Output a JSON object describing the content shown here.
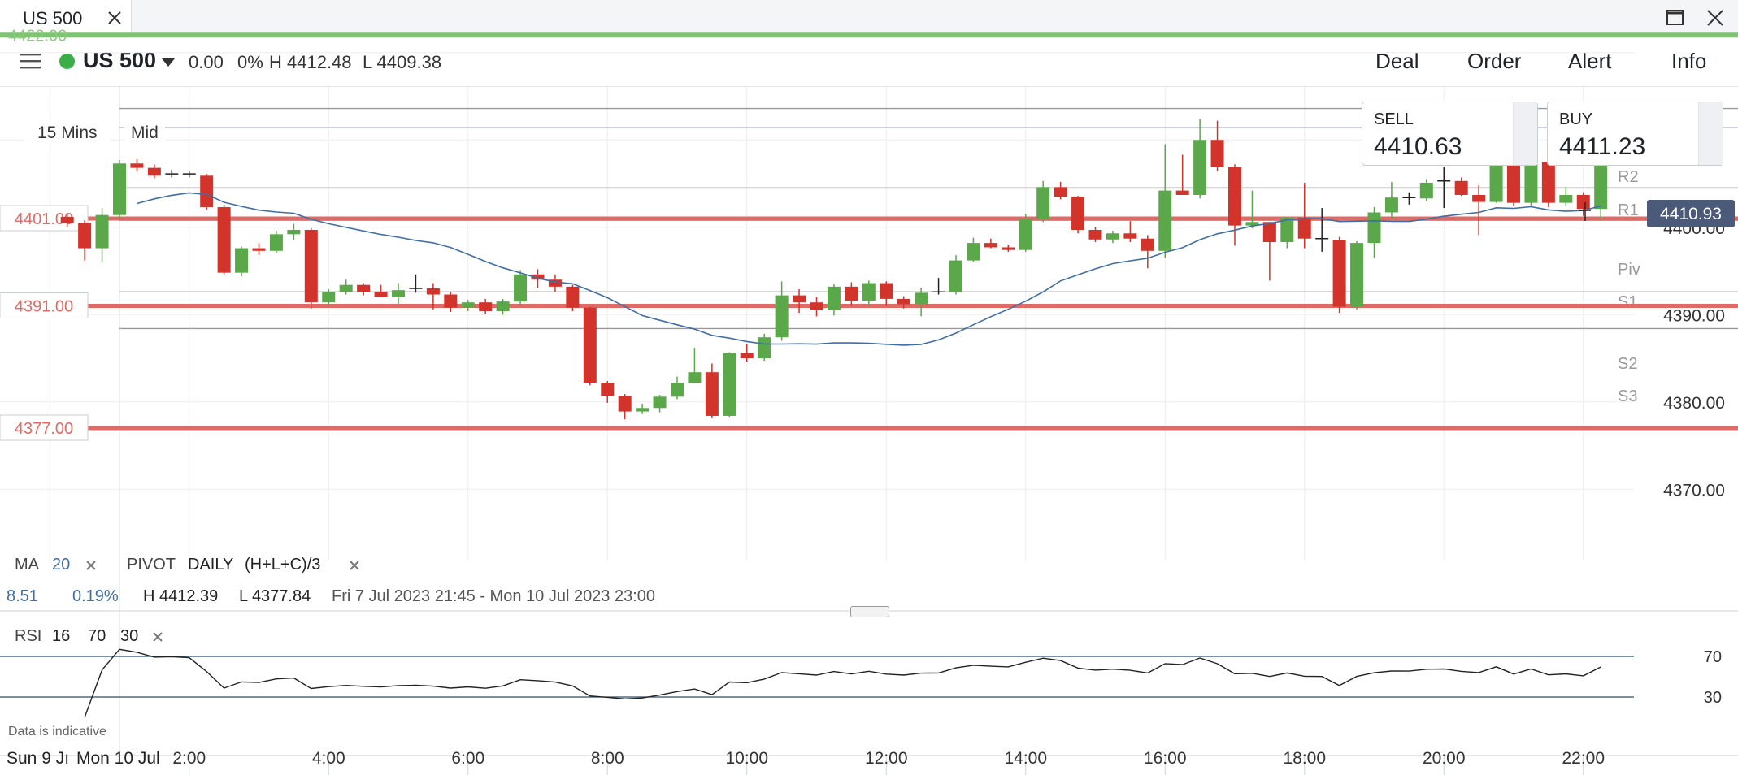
{
  "tab": {
    "title": "US 500"
  },
  "header": {
    "instrument": "US 500",
    "change": "0.00",
    "change_pct": "0%",
    "high": "H 4412.48",
    "low": "L 4409.38",
    "nav": [
      "Deal",
      "Order",
      "Alert",
      "Info"
    ]
  },
  "chart_controls": {
    "interval": "15 Mins",
    "price_type": "Mid"
  },
  "sell": {
    "label": "SELL",
    "price": "4410.63"
  },
  "buy": {
    "label": "BUY",
    "price": "4411.23"
  },
  "current_price": "4410.93",
  "levels": {
    "top_green": "4422.00",
    "alert1": "4401.00",
    "alert2": "4391.00",
    "alert3": "4377.00"
  },
  "pivot_labels": [
    "R2",
    "R1",
    "Piv",
    "S1",
    "S2",
    "S3"
  ],
  "y_ticks": [
    "4400.00",
    "4390.00",
    "4380.00",
    "4370.00"
  ],
  "x_ticks": [
    "2:00",
    "4:00",
    "6:00",
    "8:00",
    "10:00",
    "12:00",
    "14:00",
    "16:00",
    "18:00",
    "20:00",
    "22:00"
  ],
  "x_day_labels": [
    "Sun 9 Jı",
    "Mon 10 Jul"
  ],
  "indicators": {
    "ma_label": "MA",
    "ma_period": "20",
    "pivot_label": "PIVOT",
    "pivot_period": "DAILY",
    "pivot_formula": "(H+L+C)/3",
    "change_value": "8.51",
    "change_pct": "0.19%",
    "range_high": "H 4412.39",
    "range_low": "L 4377.84",
    "range_dates": "Fri 7 Jul 2023 21:45 - Mon 10 Jul 2023 23:00",
    "rsi_label": "RSI",
    "rsi_period": "16",
    "rsi_upper": "70",
    "rsi_lower": "30"
  },
  "rsi_ticks": [
    "70",
    "30"
  ],
  "disclaimer": "Data is indicative",
  "colors": {
    "up": "#5aa84a",
    "down": "#d2332b",
    "ma": "#3f6ea5",
    "alert_line": "#e06a66",
    "green_line": "#7cc46f",
    "pivot_line": "#999999",
    "price_tag": "#4a5a78"
  },
  "chart_data": {
    "type": "candlestick",
    "interval": "15 Mins",
    "ylim": [
      4365,
      4425
    ],
    "pivots": {
      "R2": 4413.6,
      "R1": 4411.4,
      "Piv": 4404.5,
      "S1": 4400.8,
      "S2": 4392.6,
      "S3": 4388.4
    },
    "candles": [
      {
        "t": "00:15",
        "o": 4401.2,
        "h": 4401.6,
        "l": 4400.0,
        "c": 4400.5
      },
      {
        "t": "00:30",
        "o": 4400.5,
        "h": 4400.8,
        "l": 4396.2,
        "c": 4397.6
      },
      {
        "t": "00:45",
        "o": 4397.6,
        "h": 4402.2,
        "l": 4396.0,
        "c": 4401.4
      },
      {
        "t": "01:00",
        "o": 4401.4,
        "h": 4407.7,
        "l": 4401.0,
        "c": 4407.3
      },
      {
        "t": "01:15",
        "o": 4407.3,
        "h": 4407.8,
        "l": 4406.4,
        "c": 4406.8
      },
      {
        "t": "01:30",
        "o": 4406.8,
        "h": 4407.2,
        "l": 4405.6,
        "c": 4405.9
      },
      {
        "t": "01:45",
        "o": 4405.9,
        "h": 4406.6,
        "l": 4405.7,
        "c": 4406.1
      },
      {
        "t": "02:00",
        "o": 4406.1,
        "h": 4406.4,
        "l": 4405.7,
        "c": 4405.9
      },
      {
        "t": "02:15",
        "o": 4405.9,
        "h": 4406.1,
        "l": 4402.0,
        "c": 4402.3
      },
      {
        "t": "02:30",
        "o": 4402.3,
        "h": 4402.6,
        "l": 4394.6,
        "c": 4394.8
      },
      {
        "t": "02:45",
        "o": 4394.8,
        "h": 4397.8,
        "l": 4394.4,
        "c": 4397.6
      },
      {
        "t": "03:00",
        "o": 4397.6,
        "h": 4398.2,
        "l": 4396.8,
        "c": 4397.3
      },
      {
        "t": "03:15",
        "o": 4397.3,
        "h": 4399.6,
        "l": 4397.0,
        "c": 4399.2
      },
      {
        "t": "03:30",
        "o": 4399.2,
        "h": 4400.4,
        "l": 4398.5,
        "c": 4399.7
      },
      {
        "t": "03:45",
        "o": 4399.7,
        "h": 4399.9,
        "l": 4390.7,
        "c": 4391.4
      },
      {
        "t": "04:00",
        "o": 4391.4,
        "h": 4392.9,
        "l": 4391.1,
        "c": 4392.6
      },
      {
        "t": "04:15",
        "o": 4392.6,
        "h": 4394.0,
        "l": 4392.3,
        "c": 4393.4
      },
      {
        "t": "04:30",
        "o": 4393.4,
        "h": 4393.6,
        "l": 4392.2,
        "c": 4392.6
      },
      {
        "t": "04:45",
        "o": 4392.6,
        "h": 4393.4,
        "l": 4392.2,
        "c": 4392.0
      },
      {
        "t": "05:00",
        "o": 4392.0,
        "h": 4393.6,
        "l": 4391.2,
        "c": 4392.8
      },
      {
        "t": "05:15",
        "o": 4392.8,
        "h": 4394.6,
        "l": 4392.5,
        "c": 4393.0
      },
      {
        "t": "05:30",
        "o": 4393.0,
        "h": 4393.6,
        "l": 4390.6,
        "c": 4392.3
      },
      {
        "t": "05:45",
        "o": 4392.3,
        "h": 4392.6,
        "l": 4390.3,
        "c": 4390.8
      },
      {
        "t": "06:00",
        "o": 4390.8,
        "h": 4391.7,
        "l": 4390.4,
        "c": 4391.4
      },
      {
        "t": "06:15",
        "o": 4391.4,
        "h": 4391.8,
        "l": 4390.1,
        "c": 4390.4
      },
      {
        "t": "06:30",
        "o": 4390.4,
        "h": 4391.8,
        "l": 4390.0,
        "c": 4391.5
      },
      {
        "t": "06:45",
        "o": 4391.5,
        "h": 4395.1,
        "l": 4391.2,
        "c": 4394.6
      },
      {
        "t": "07:00",
        "o": 4394.6,
        "h": 4395.2,
        "l": 4393.0,
        "c": 4394.0
      },
      {
        "t": "07:15",
        "o": 4394.0,
        "h": 4394.6,
        "l": 4392.6,
        "c": 4393.2
      },
      {
        "t": "07:30",
        "o": 4393.2,
        "h": 4393.4,
        "l": 4390.4,
        "c": 4390.8
      },
      {
        "t": "07:45",
        "o": 4390.8,
        "h": 4390.9,
        "l": 4381.9,
        "c": 4382.2
      },
      {
        "t": "08:00",
        "o": 4382.2,
        "h": 4382.4,
        "l": 4379.9,
        "c": 4380.7
      },
      {
        "t": "08:15",
        "o": 4380.7,
        "h": 4380.9,
        "l": 4378.0,
        "c": 4378.9
      },
      {
        "t": "08:30",
        "o": 4378.9,
        "h": 4379.8,
        "l": 4378.6,
        "c": 4379.3
      },
      {
        "t": "08:45",
        "o": 4379.3,
        "h": 4380.8,
        "l": 4378.8,
        "c": 4380.6
      },
      {
        "t": "09:00",
        "o": 4380.6,
        "h": 4382.9,
        "l": 4380.3,
        "c": 4382.2
      },
      {
        "t": "09:15",
        "o": 4382.2,
        "h": 4386.2,
        "l": 4382.1,
        "c": 4383.4
      },
      {
        "t": "09:30",
        "o": 4383.4,
        "h": 4384.4,
        "l": 4378.2,
        "c": 4378.4
      },
      {
        "t": "09:45",
        "o": 4378.4,
        "h": 4385.7,
        "l": 4378.3,
        "c": 4385.6
      },
      {
        "t": "10:00",
        "o": 4385.6,
        "h": 4386.6,
        "l": 4384.6,
        "c": 4385.0
      },
      {
        "t": "10:15",
        "o": 4385.0,
        "h": 4387.8,
        "l": 4384.7,
        "c": 4387.4
      },
      {
        "t": "10:30",
        "o": 4387.4,
        "h": 4393.8,
        "l": 4387.0,
        "c": 4392.2
      },
      {
        "t": "10:45",
        "o": 4392.2,
        "h": 4392.9,
        "l": 4390.2,
        "c": 4391.4
      },
      {
        "t": "11:00",
        "o": 4391.4,
        "h": 4392.0,
        "l": 4389.8,
        "c": 4390.5
      },
      {
        "t": "11:15",
        "o": 4390.5,
        "h": 4393.5,
        "l": 4389.9,
        "c": 4393.2
      },
      {
        "t": "11:30",
        "o": 4393.2,
        "h": 4393.7,
        "l": 4391.0,
        "c": 4391.6
      },
      {
        "t": "11:45",
        "o": 4391.6,
        "h": 4393.9,
        "l": 4391.0,
        "c": 4393.6
      },
      {
        "t": "12:00",
        "o": 4393.6,
        "h": 4393.8,
        "l": 4391.0,
        "c": 4391.8
      },
      {
        "t": "12:15",
        "o": 4391.8,
        "h": 4392.1,
        "l": 4390.7,
        "c": 4391.2
      },
      {
        "t": "12:30",
        "o": 4391.2,
        "h": 4393.1,
        "l": 4389.8,
        "c": 4392.5
      },
      {
        "t": "12:45",
        "o": 4392.5,
        "h": 4394.2,
        "l": 4392.3,
        "c": 4392.6
      },
      {
        "t": "13:00",
        "o": 4392.6,
        "h": 4396.8,
        "l": 4392.3,
        "c": 4396.2
      },
      {
        "t": "13:15",
        "o": 4396.2,
        "h": 4398.8,
        "l": 4396.0,
        "c": 4398.2
      },
      {
        "t": "13:30",
        "o": 4398.2,
        "h": 4398.7,
        "l": 4397.6,
        "c": 4397.7
      },
      {
        "t": "13:45",
        "o": 4397.7,
        "h": 4398.0,
        "l": 4397.2,
        "c": 4397.4
      },
      {
        "t": "14:00",
        "o": 4397.4,
        "h": 4401.5,
        "l": 4397.2,
        "c": 4400.9
      },
      {
        "t": "14:15",
        "o": 4400.9,
        "h": 4405.3,
        "l": 4400.6,
        "c": 4404.6
      },
      {
        "t": "14:30",
        "o": 4404.6,
        "h": 4405.2,
        "l": 4403.2,
        "c": 4403.5
      },
      {
        "t": "14:45",
        "o": 4403.5,
        "h": 4403.6,
        "l": 4399.3,
        "c": 4399.7
      },
      {
        "t": "15:00",
        "o": 4399.7,
        "h": 4400.0,
        "l": 4398.3,
        "c": 4398.6
      },
      {
        "t": "15:15",
        "o": 4398.6,
        "h": 4399.6,
        "l": 4398.2,
        "c": 4399.3
      },
      {
        "t": "15:30",
        "o": 4399.3,
        "h": 4400.7,
        "l": 4398.3,
        "c": 4398.7
      },
      {
        "t": "15:45",
        "o": 4398.7,
        "h": 4399.1,
        "l": 4395.3,
        "c": 4397.3
      },
      {
        "t": "16:00",
        "o": 4397.3,
        "h": 4409.5,
        "l": 4396.5,
        "c": 4404.2
      },
      {
        "t": "16:15",
        "o": 4404.2,
        "h": 4408.3,
        "l": 4403.8,
        "c": 4403.7
      },
      {
        "t": "16:30",
        "o": 4403.7,
        "h": 4412.4,
        "l": 4403.3,
        "c": 4410.0
      },
      {
        "t": "16:45",
        "o": 4410.0,
        "h": 4412.2,
        "l": 4406.4,
        "c": 4406.9
      },
      {
        "t": "17:00",
        "o": 4406.9,
        "h": 4407.2,
        "l": 4397.9,
        "c": 4400.2
      },
      {
        "t": "17:15",
        "o": 4400.2,
        "h": 4404.2,
        "l": 4399.9,
        "c": 4400.6
      },
      {
        "t": "17:30",
        "o": 4400.6,
        "h": 4400.6,
        "l": 4393.9,
        "c": 4398.3
      },
      {
        "t": "17:45",
        "o": 4398.3,
        "h": 4401.2,
        "l": 4397.6,
        "c": 4401.1
      },
      {
        "t": "18:00",
        "o": 4401.1,
        "h": 4405.1,
        "l": 4397.6,
        "c": 4398.7
      },
      {
        "t": "18:15",
        "o": 4398.7,
        "h": 4402.2,
        "l": 4397.2,
        "c": 4398.5
      },
      {
        "t": "18:30",
        "o": 4398.5,
        "h": 4398.9,
        "l": 4390.2,
        "c": 4390.9
      },
      {
        "t": "18:45",
        "o": 4390.9,
        "h": 4398.4,
        "l": 4390.6,
        "c": 4398.2
      },
      {
        "t": "19:00",
        "o": 4398.2,
        "h": 4402.3,
        "l": 4396.5,
        "c": 4401.7
      },
      {
        "t": "19:15",
        "o": 4401.7,
        "h": 4405.2,
        "l": 4401.0,
        "c": 4403.4
      },
      {
        "t": "19:30",
        "o": 4403.4,
        "h": 4404.0,
        "l": 4402.6,
        "c": 4403.3
      },
      {
        "t": "19:45",
        "o": 4403.3,
        "h": 4405.5,
        "l": 4403.0,
        "c": 4405.1
      },
      {
        "t": "20:00",
        "o": 4405.1,
        "h": 4406.9,
        "l": 4402.2,
        "c": 4405.3
      },
      {
        "t": "20:15",
        "o": 4405.3,
        "h": 4405.7,
        "l": 4403.6,
        "c": 4403.7
      },
      {
        "t": "20:30",
        "o": 4403.7,
        "h": 4404.8,
        "l": 4399.1,
        "c": 4402.9
      },
      {
        "t": "20:45",
        "o": 4402.9,
        "h": 4408.2,
        "l": 4402.8,
        "c": 4407.9
      },
      {
        "t": "21:00",
        "o": 4407.9,
        "h": 4408.1,
        "l": 4402.4,
        "c": 4402.8
      },
      {
        "t": "21:15",
        "o": 4402.8,
        "h": 4407.7,
        "l": 4402.5,
        "c": 4407.5
      },
      {
        "t": "21:30",
        "o": 4407.5,
        "h": 4407.8,
        "l": 4402.3,
        "c": 4402.8
      },
      {
        "t": "21:45",
        "o": 4402.8,
        "h": 4404.6,
        "l": 4402.4,
        "c": 4403.7
      },
      {
        "t": "22:00",
        "o": 4403.7,
        "h": 4404.0,
        "l": 4401.3,
        "c": 4402.1
      },
      {
        "t": "22:15",
        "o": 4402.1,
        "h": 4411.4,
        "l": 4400.8,
        "c": 4411.0
      }
    ]
  }
}
